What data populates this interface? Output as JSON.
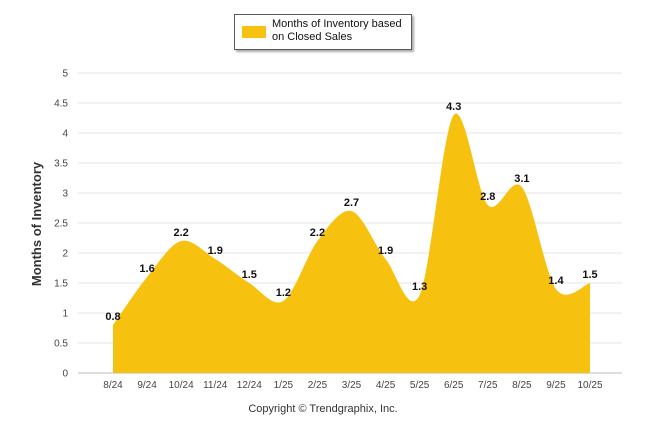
{
  "chart_data": {
    "type": "area",
    "categories": [
      "8/24",
      "9/24",
      "10/24",
      "11/24",
      "12/24",
      "1/25",
      "2/25",
      "3/25",
      "4/25",
      "5/25",
      "6/25",
      "7/25",
      "8/25",
      "9/25",
      "10/25"
    ],
    "series": [
      {
        "name": "Months of Inventory based on Closed Sales",
        "values": [
          0.8,
          1.6,
          2.2,
          1.9,
          1.5,
          1.2,
          2.2,
          2.7,
          1.9,
          1.3,
          4.3,
          2.8,
          3.1,
          1.4,
          1.5
        ],
        "color": "#f6c20f"
      }
    ],
    "ylabel": "Months of Inventory",
    "xlabel": "",
    "ylim": [
      0,
      5
    ],
    "yticks": [
      "0",
      "0.5",
      "1",
      "1.5",
      "2",
      "2.5",
      "3",
      "3.5",
      "4",
      "4.5",
      "5"
    ],
    "grid": true,
    "legend_position": "top-center"
  },
  "legend": {
    "label": "Months of Inventory based on Closed Sales"
  },
  "footer": {
    "copyright": "Copyright © Trendgraphix, Inc."
  }
}
